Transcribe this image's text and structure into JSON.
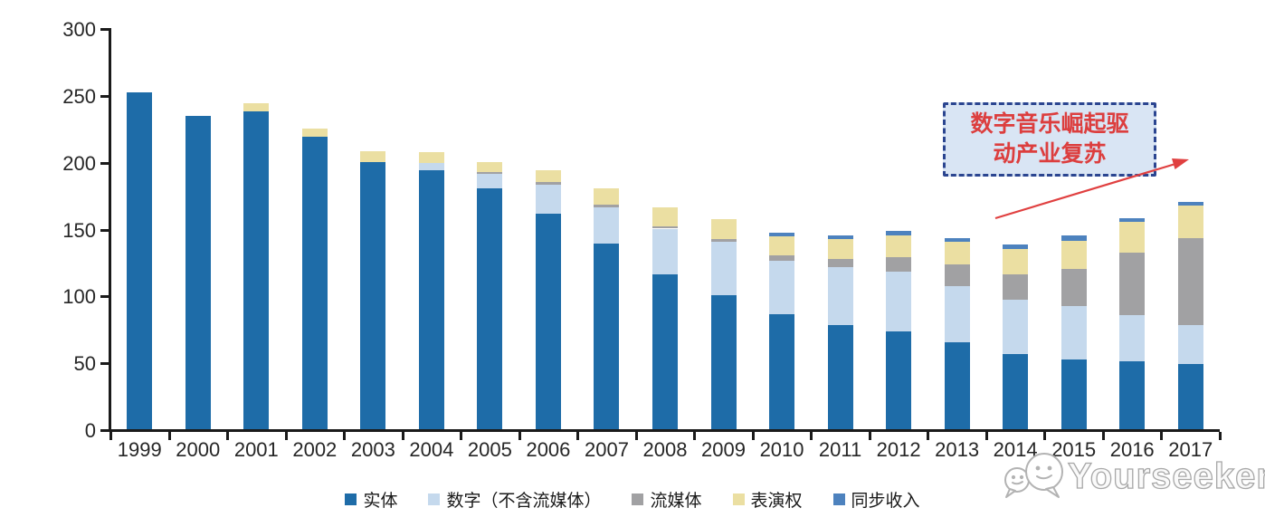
{
  "chart_data": {
    "type": "bar",
    "stacked": true,
    "title": "",
    "xlabel": "",
    "ylabel": "",
    "grid": false,
    "legend_position": "bottom",
    "ylim": [
      0,
      300
    ],
    "yticks": [
      0,
      50,
      100,
      150,
      200,
      250,
      300
    ],
    "axis_color": "#1a1a1a",
    "categories": [
      "1999",
      "2000",
      "2001",
      "2002",
      "2003",
      "2004",
      "2005",
      "2006",
      "2007",
      "2008",
      "2009",
      "2010",
      "2011",
      "2012",
      "2013",
      "2014",
      "2015",
      "2016",
      "2017"
    ],
    "series": [
      {
        "name": "实体",
        "color": "#1E6CA8",
        "values": [
          252,
          234,
          238,
          219,
          200,
          194,
          180,
          161,
          139,
          116,
          100,
          86,
          78,
          73,
          65,
          56,
          52,
          51,
          49
        ]
      },
      {
        "name": "数字（不含流媒体）",
        "color": "#C5D9ED",
        "values": [
          0,
          0,
          0,
          0,
          0,
          5,
          11,
          22,
          27,
          34,
          40,
          40,
          43,
          45,
          42,
          41,
          40,
          34,
          29
        ]
      },
      {
        "name": "流媒体",
        "color": "#A1A1A3",
        "values": [
          0,
          0,
          0,
          0,
          0,
          0,
          1,
          2,
          2,
          2,
          2,
          4,
          6,
          11,
          16,
          19,
          28,
          47,
          65
        ]
      },
      {
        "name": "表演权",
        "color": "#EBDFA2",
        "values": [
          0,
          0,
          6,
          6,
          8,
          8,
          8,
          9,
          12,
          14,
          15,
          14,
          15,
          16,
          17,
          19,
          21,
          23,
          24
        ]
      },
      {
        "name": "同步收入",
        "color": "#4D82BE",
        "values": [
          0,
          0,
          0,
          0,
          0,
          0,
          0,
          0,
          0,
          0,
          0,
          3,
          3,
          3,
          3,
          3,
          4,
          3,
          3
        ]
      }
    ]
  },
  "annotation": {
    "line1": "数字音乐崛起驱",
    "line2": "动产业复苏",
    "text_color": "#DC3E3E",
    "box_fill": "#D9E5F4",
    "box_border": "#2B4590",
    "arrow_color": "#E04040"
  },
  "watermark": {
    "text": "Yourseeker",
    "icon": "wechat-chat-bubbles-icon"
  }
}
